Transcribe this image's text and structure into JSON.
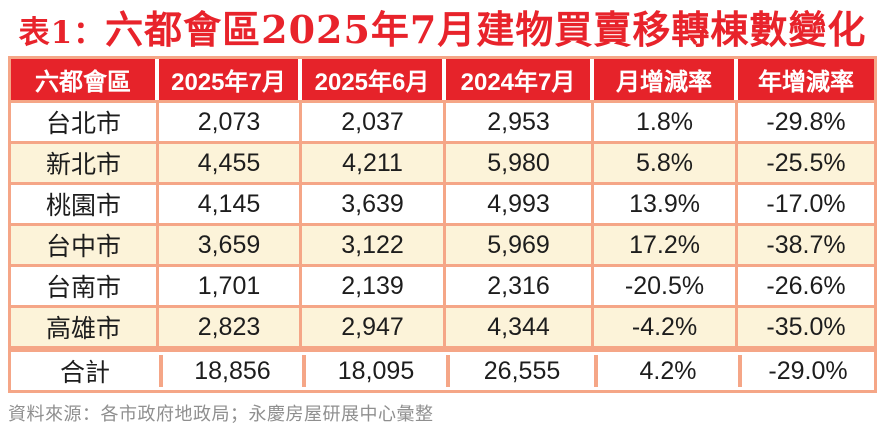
{
  "title": {
    "prefix": "表1：",
    "main": "六都會區2025年7月建物買賣移轉棟數變化"
  },
  "colors": {
    "header_red": "#e6232a",
    "title_red": "#e8232b",
    "border_salmon": "#f5a687",
    "row_cream": "#fcf3d9",
    "row_white": "#ffffff",
    "text_dark": "#1d1d1d",
    "footer_gray": "#8f8f8f"
  },
  "table": {
    "headers": [
      "六都會區",
      "2025年7月",
      "2025年6月",
      "2024年7月",
      "月增減率",
      "年增減率"
    ],
    "rows": [
      [
        "台北市",
        "2,073",
        "2,037",
        "2,953",
        "1.8%",
        "-29.8%"
      ],
      [
        "新北市",
        "4,455",
        "4,211",
        "5,980",
        "5.8%",
        "-25.5%"
      ],
      [
        "桃園市",
        "4,145",
        "3,639",
        "4,993",
        "13.9%",
        "-17.0%"
      ],
      [
        "台中市",
        "3,659",
        "3,122",
        "5,969",
        "17.2%",
        "-38.7%"
      ],
      [
        "台南市",
        "1,701",
        "2,139",
        "2,316",
        "-20.5%",
        "-26.6%"
      ],
      [
        "高雄市",
        "2,823",
        "2,947",
        "4,344",
        "-4.2%",
        "-35.0%"
      ]
    ],
    "total": [
      "合計",
      "18,856",
      "18,095",
      "26,555",
      "4.2%",
      "-29.0%"
    ]
  },
  "footer": {
    "source": "資料來源：各市政府地政局；永慶房屋研展中心彙整"
  },
  "chart_data": {
    "type": "table",
    "title": "表1：六都會區2025年7月建物買賣移轉棟數變化",
    "columns": [
      "六都會區",
      "2025年7月",
      "2025年6月",
      "2024年7月",
      "月增減率",
      "年增減率"
    ],
    "rows": [
      {
        "city": "台北市",
        "jul_2025": 2073,
        "jun_2025": 2037,
        "jul_2024": 2953,
        "mom_pct": 1.8,
        "yoy_pct": -29.8
      },
      {
        "city": "新北市",
        "jul_2025": 4455,
        "jun_2025": 4211,
        "jul_2024": 5980,
        "mom_pct": 5.8,
        "yoy_pct": -25.5
      },
      {
        "city": "桃園市",
        "jul_2025": 4145,
        "jun_2025": 3639,
        "jul_2024": 4993,
        "mom_pct": 13.9,
        "yoy_pct": -17.0
      },
      {
        "city": "台中市",
        "jul_2025": 3659,
        "jun_2025": 3122,
        "jul_2024": 5969,
        "mom_pct": 17.2,
        "yoy_pct": -38.7
      },
      {
        "city": "台南市",
        "jul_2025": 1701,
        "jun_2025": 2139,
        "jul_2024": 2316,
        "mom_pct": -20.5,
        "yoy_pct": -26.6
      },
      {
        "city": "高雄市",
        "jul_2025": 2823,
        "jun_2025": 2947,
        "jul_2024": 4344,
        "mom_pct": -4.2,
        "yoy_pct": -35.0
      }
    ],
    "total": {
      "city": "合計",
      "jul_2025": 18856,
      "jun_2025": 18095,
      "jul_2024": 26555,
      "mom_pct": 4.2,
      "yoy_pct": -29.0
    },
    "source": "資料來源：各市政府地政局；永慶房屋研展中心彙整"
  }
}
